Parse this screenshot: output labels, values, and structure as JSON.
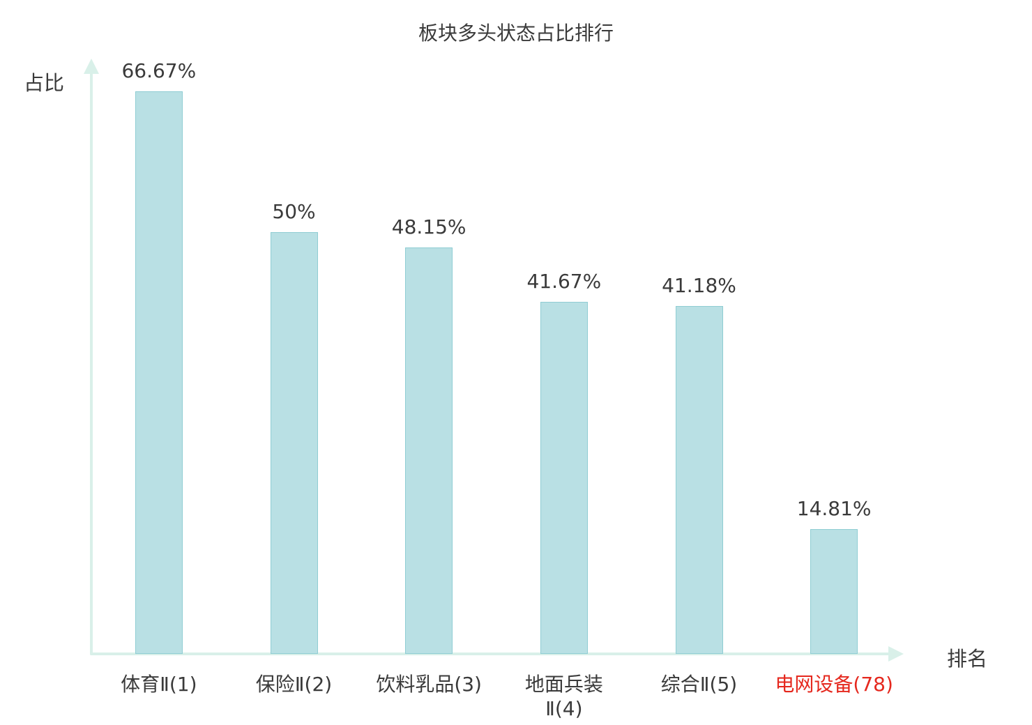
{
  "title": "板块多头状态占比排行",
  "axis_labels": {
    "y": "占比",
    "x": "排名"
  },
  "chart_data": {
    "type": "bar",
    "title": "板块多头状态占比排行",
    "xlabel": "排名",
    "ylabel": "占比",
    "categories": [
      "体育Ⅱ(1)",
      "保险Ⅱ(2)",
      "饮料乳品(3)",
      "地面兵装\nⅡ(4)",
      "综合Ⅱ(5)",
      "电网设备(78)"
    ],
    "values": [
      66.67,
      50,
      48.15,
      41.67,
      41.18,
      14.81
    ],
    "value_labels": [
      "66.67%",
      "50%",
      "48.15%",
      "41.67%",
      "41.18%",
      "14.81%"
    ],
    "ylim": [
      0,
      70.2
    ],
    "grid": false,
    "legend": "none",
    "highlight_index": 5
  },
  "colors": {
    "bar_fill": "#b9e0e4",
    "bar_border": "#8fcdd3",
    "axis": "#d9f0e9",
    "text": "#3a3a3a",
    "highlight": "#e5281e"
  }
}
